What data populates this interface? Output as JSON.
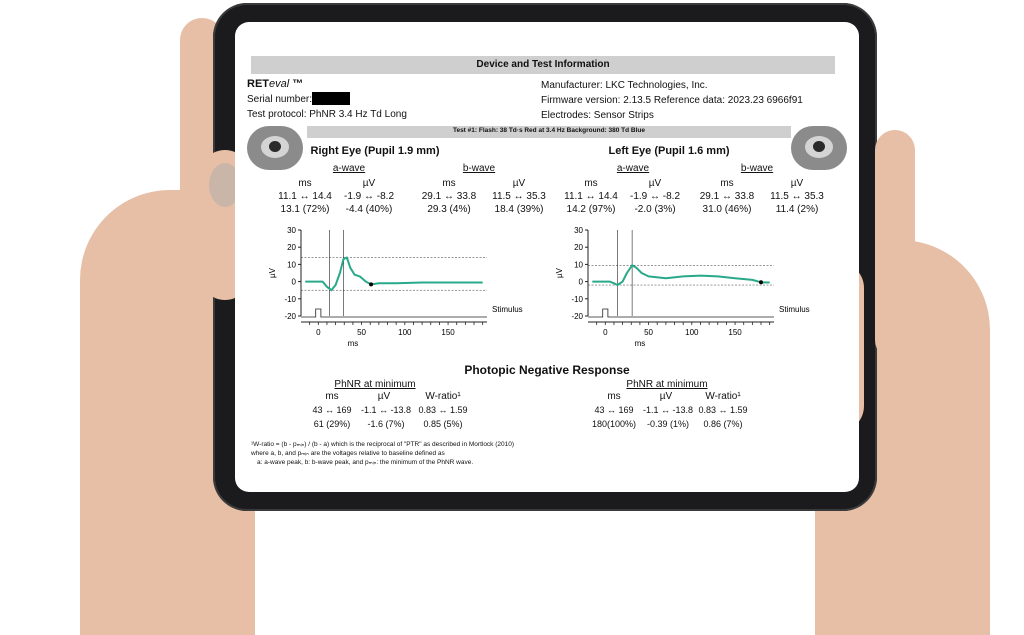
{
  "header": {
    "title": "Device and Test Information"
  },
  "device": {
    "brand_bold": "RET",
    "brand_italic": "eval",
    "brand_tm": "™",
    "serial_label": "Serial number:",
    "protocol": "Test protocol: PhNR 3.4 Hz Td Long",
    "manufacturer": "Manufacturer: LKC Technologies, Inc.",
    "firmware": "Firmware version: 2.13.5 Reference data: 2023.23 6966f91",
    "electrodes": "Electrodes: Sensor Strips"
  },
  "test_bar": "Test #1:   Flash: 38 Td·s Red at 3.4 Hz   Background: 380 Td Blue",
  "eyes": [
    {
      "title": "Right Eye (Pupil 1.9 mm)",
      "a_wave": "a-wave",
      "b_wave": "b-wave",
      "units": [
        "ms",
        "µV",
        "ms",
        "µV"
      ],
      "range": [
        "11.1 ↔ 14.4",
        "-1.9 ↔ -8.2",
        "29.1 ↔ 33.8",
        "11.5 ↔ 35.3"
      ],
      "values": [
        "13.1 (72%)",
        "-4.4 (40%)",
        "29.3 (4%)",
        "18.4 (39%)"
      ],
      "phnr": {
        "title": "PhNR at minimum",
        "units": [
          "ms",
          "µV",
          "W-ratio¹"
        ],
        "range": [
          "43 ↔ 169",
          "-1.1 ↔ -13.8",
          "0.83 ↔ 1.59"
        ],
        "values": [
          "61 (29%)",
          "-1.6 (7%)",
          "0.85 (5%)"
        ]
      }
    },
    {
      "title": "Left Eye (Pupil 1.6 mm)",
      "a_wave": "a-wave",
      "b_wave": "b-wave",
      "units": [
        "ms",
        "µV",
        "ms",
        "µV"
      ],
      "range": [
        "11.1 ↔ 14.4",
        "-1.9 ↔ -8.2",
        "29.1 ↔ 33.8",
        "11.5 ↔ 35.3"
      ],
      "values": [
        "14.2 (97%)",
        "-2.0 (3%)",
        "31.0 (46%)",
        "11.4 (2%)"
      ],
      "phnr": {
        "title": "PhNR at minimum",
        "units": [
          "ms",
          "µV",
          "W-ratio¹"
        ],
        "range": [
          "43 ↔ 169",
          "-1.1 ↔ -13.8",
          "0.83 ↔ 1.59"
        ],
        "values": [
          "180(100%)",
          "-0.39 (1%)",
          "0.86 (7%)"
        ]
      }
    }
  ],
  "chart": {
    "ylabel": "µV",
    "xlabel": "ms",
    "stimulus": "Stimulus",
    "y_ticks": [
      "30",
      "20",
      "10",
      "0",
      "-10",
      "-20"
    ],
    "x_ticks": [
      "0",
      "50",
      "100",
      "150"
    ],
    "wave_color": "#27a98a"
  },
  "chart_data": [
    {
      "type": "line",
      "xlabel": "ms",
      "ylabel": "µV",
      "xlim": [
        -20,
        195
      ],
      "ylim": [
        -20,
        30
      ],
      "series": [
        {
          "x": [
            -15,
            -5,
            5,
            10,
            15,
            20,
            25,
            29,
            33,
            37,
            42,
            48,
            55,
            61,
            70,
            90,
            120,
            150,
            190
          ],
          "y": [
            0,
            0,
            0,
            -3,
            -5,
            -2,
            5,
            13,
            14,
            8,
            4,
            3,
            0,
            -1.6,
            -1,
            -1,
            -0.5,
            -0.5,
            -0.5
          ]
        }
      ],
      "markers": {
        "a_wave_ms": 13.1,
        "b_wave_ms": 29.3,
        "phnr_ms": 61
      },
      "stimulus_ms": 0
    },
    {
      "type": "line",
      "xlabel": "ms",
      "ylabel": "µV",
      "xlim": [
        -20,
        195
      ],
      "ylim": [
        -20,
        30
      ],
      "series": [
        {
          "x": [
            -15,
            -5,
            5,
            10,
            14,
            20,
            25,
            31,
            36,
            42,
            50,
            70,
            90,
            110,
            130,
            150,
            170,
            180,
            190
          ],
          "y": [
            0,
            0,
            0,
            -1,
            -2,
            0,
            5,
            9.5,
            8,
            5,
            3,
            2,
            3,
            3.5,
            3,
            2,
            1,
            -0.4,
            -0.5
          ]
        }
      ],
      "markers": {
        "a_wave_ms": 14.2,
        "b_wave_ms": 31.0,
        "phnr_ms": 180
      },
      "stimulus_ms": 0
    }
  ],
  "phnr_section": {
    "title": "Photopic Negative Response"
  },
  "footnote": {
    "line1": "¹W-ratio = (b - pₘᵢₙ) / (b - a) which is the reciprocal of \"PTR\" as described in Mortlock (2010)",
    "line2": "where a, b, and pₘᵢₙ are the voltages relative to baseline defined as",
    "line3": "a: a-wave peak, b: b-wave peak, and pₘᵢₙ: the minimum of the PhNR wave."
  }
}
